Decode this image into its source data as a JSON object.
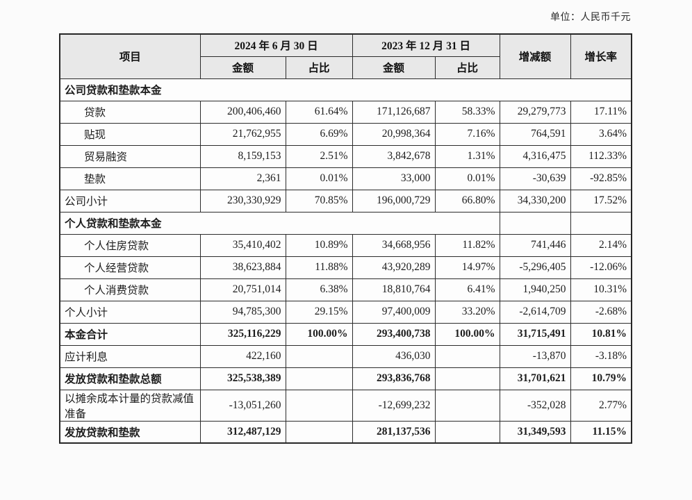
{
  "page": {
    "unit_label": "单位：人民币千元"
  },
  "table": {
    "header": {
      "item": "项目",
      "date_2024": "2024 年 6 月 30 日",
      "date_2023": "2023 年 12 月 31 日",
      "amount": "金额",
      "ratio": "占比",
      "change": "增减额",
      "growth": "增长率"
    },
    "rows": [
      {
        "type": "section_full",
        "label": "公司贷款和垫款本金",
        "cells": [
          "",
          "",
          "",
          "",
          "",
          ""
        ]
      },
      {
        "type": "item",
        "label": "贷款",
        "cells": [
          "200,406,460",
          "61.64%",
          "171,126,687",
          "58.33%",
          "29,279,773",
          "17.11%"
        ]
      },
      {
        "type": "item",
        "label": "贴现",
        "cells": [
          "21,762,955",
          "6.69%",
          "20,998,364",
          "7.16%",
          "764,591",
          "3.64%"
        ]
      },
      {
        "type": "item",
        "label": "贸易融资",
        "cells": [
          "8,159,153",
          "2.51%",
          "3,842,678",
          "1.31%",
          "4,316,475",
          "112.33%"
        ]
      },
      {
        "type": "item",
        "label": "垫款",
        "cells": [
          "2,361",
          "0.01%",
          "33,000",
          "0.01%",
          "-30,639",
          "-92.85%"
        ]
      },
      {
        "type": "row",
        "label": "公司小计",
        "cells": [
          "230,330,929",
          "70.85%",
          "196,000,729",
          "66.80%",
          "34,330,200",
          "17.52%"
        ]
      },
      {
        "type": "section_cells",
        "label": "个人贷款和垫款本金",
        "cells": [
          "",
          "",
          "",
          "",
          "",
          ""
        ]
      },
      {
        "type": "item",
        "label": "个人住房贷款",
        "cells": [
          "35,410,402",
          "10.89%",
          "34,668,956",
          "11.82%",
          "741,446",
          "2.14%"
        ]
      },
      {
        "type": "item",
        "label": "个人经营贷款",
        "cells": [
          "38,623,884",
          "11.88%",
          "43,920,289",
          "14.97%",
          "-5,296,405",
          "-12.06%"
        ]
      },
      {
        "type": "item",
        "label": "个人消费贷款",
        "cells": [
          "20,751,014",
          "6.38%",
          "18,810,764",
          "6.41%",
          "1,940,250",
          "10.31%"
        ]
      },
      {
        "type": "row",
        "label": "个人小计",
        "cells": [
          "94,785,300",
          "29.15%",
          "97,400,009",
          "33.20%",
          "-2,614,709",
          "-2.68%"
        ]
      },
      {
        "type": "total",
        "label": "本金合计",
        "cells": [
          "325,116,229",
          "100.00%",
          "293,400,738",
          "100.00%",
          "31,715,491",
          "10.81%"
        ]
      },
      {
        "type": "row",
        "label": "应计利息",
        "cells": [
          "422,160",
          "",
          "436,030",
          "",
          "-13,870",
          "-3.18%"
        ]
      },
      {
        "type": "total",
        "label": "发放贷款和垫款总额",
        "cells": [
          "325,538,389",
          "",
          "293,836,768",
          "",
          "31,701,621",
          "10.79%"
        ]
      },
      {
        "type": "row",
        "label": "以摊余成本计量的贷款减值准备",
        "cells": [
          "-13,051,260",
          "",
          "-12,699,232",
          "",
          "-352,028",
          "2.77%"
        ]
      },
      {
        "type": "total",
        "label": "发放贷款和垫款",
        "cells": [
          "312,487,129",
          "",
          "281,137,536",
          "",
          "31,349,593",
          "11.15%"
        ]
      }
    ]
  }
}
